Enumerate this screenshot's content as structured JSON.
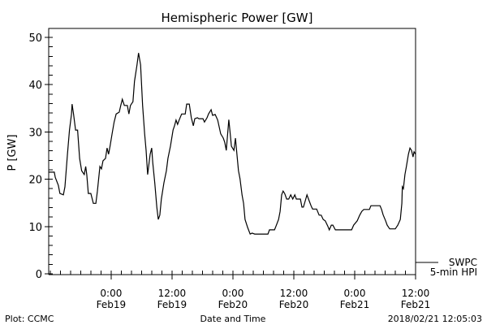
{
  "chart_data": {
    "type": "line",
    "title": "Hemispheric Power [GW]",
    "xlabel": "Date and Time",
    "ylabel": "P [GW]",
    "x_units": "hours relative to 2018-02-19 00:00",
    "xlim": [
      -12.3,
      60
    ],
    "ylim": [
      0,
      50
    ],
    "y_ticks": [
      0,
      10,
      20,
      30,
      40,
      50
    ],
    "y_minor_step": 2,
    "x_minor_step": 2,
    "x_ticks": [
      {
        "value": 0,
        "time": "0:00",
        "date": "Feb19"
      },
      {
        "value": 12,
        "time": "12:00",
        "date": "Feb19"
      },
      {
        "value": 24,
        "time": "0:00",
        "date": "Feb20"
      },
      {
        "value": 36,
        "time": "12:00",
        "date": "Feb20"
      },
      {
        "value": 48,
        "time": "0:00",
        "date": "Feb21"
      },
      {
        "value": 60,
        "time": "12:00",
        "date": "Feb21"
      }
    ],
    "grid": false,
    "legend": {
      "placement": "bottom-right",
      "entries": [
        {
          "line1": "SWPC",
          "line2": "5-min HPI"
        }
      ]
    },
    "series": [
      {
        "name": "SWPC 5-min HPI",
        "color": "#000000",
        "x": [
          -12.3,
          -11.2,
          -11.0,
          -10.4,
          -10.1,
          -9.4,
          -9.1,
          -8.6,
          -8.2,
          -7.8,
          -7.7,
          -7.4,
          -7.0,
          -6.6,
          -6.2,
          -5.8,
          -5.3,
          -5.0,
          -4.8,
          -4.5,
          -4.0,
          -3.5,
          -3.0,
          -2.7,
          -2.2,
          -1.9,
          -1.6,
          -1.1,
          -0.8,
          -0.5,
          -0.2,
          0.2,
          0.6,
          1.0,
          1.6,
          1.9,
          2.2,
          2.6,
          3.2,
          3.5,
          3.8,
          4.3,
          4.6,
          5.1,
          5.4,
          5.8,
          6.2,
          6.6,
          6.9,
          7.2,
          7.7,
          8.0,
          8.2,
          8.6,
          9.0,
          9.3,
          9.6,
          9.9,
          10.4,
          10.9,
          11.2,
          11.7,
          12.2,
          12.5,
          12.8,
          13.1,
          13.4,
          13.9,
          14.6,
          14.9,
          15.4,
          15.8,
          16.2,
          16.5,
          17.0,
          17.3,
          18.1,
          18.4,
          18.9,
          19.2,
          19.7,
          20.0,
          20.5,
          21.0,
          21.6,
          22.1,
          22.4,
          22.7,
          23.2,
          23.4,
          23.7,
          24.2,
          24.5,
          24.8,
          25.1,
          25.4,
          25.8,
          26.1,
          26.4,
          26.9,
          27.4,
          27.8,
          28.3,
          30.9,
          31.2,
          32.2,
          32.5,
          33.0,
          33.3,
          33.6,
          33.9,
          34.2,
          34.6,
          35.0,
          35.4,
          35.8,
          36.2,
          36.5,
          37.3,
          37.6,
          37.9,
          38.2,
          38.6,
          38.9,
          39.4,
          39.7,
          40.5,
          41.0,
          41.4,
          41.8,
          42.2,
          42.7,
          43.0,
          43.4,
          43.7,
          44.2,
          47.4,
          47.8,
          48.5,
          49.0,
          49.4,
          49.8,
          50.9,
          51.2,
          53.0,
          53.3,
          53.6,
          54.1,
          54.4,
          54.9,
          56.0,
          56.5,
          57.0,
          57.3,
          57.4,
          57.6,
          57.9,
          58.2,
          58.6,
          58.9,
          59.2,
          59.5,
          59.7,
          60.0
        ],
        "y": [
          21.5,
          21.5,
          20.4,
          18.7,
          17.0,
          16.7,
          18.4,
          25.3,
          30.4,
          33.8,
          35.9,
          33.8,
          30.4,
          30.4,
          24.4,
          21.8,
          21.0,
          22.7,
          21.0,
          17.0,
          17.0,
          14.9,
          14.9,
          17.5,
          22.7,
          22.2,
          23.9,
          24.4,
          26.6,
          25.3,
          27.0,
          29.6,
          32.1,
          33.8,
          34.2,
          35.6,
          36.9,
          35.6,
          35.6,
          33.8,
          35.6,
          36.4,
          40.7,
          44.2,
          46.7,
          44.2,
          35.6,
          29.6,
          26.1,
          21.0,
          25.3,
          26.6,
          23.5,
          19.2,
          14.1,
          11.5,
          12.4,
          15.8,
          19.2,
          21.8,
          24.4,
          27.0,
          30.4,
          31.3,
          32.5,
          31.6,
          32.5,
          33.8,
          33.8,
          35.9,
          35.9,
          33.0,
          31.3,
          32.8,
          33.0,
          32.8,
          32.8,
          32.1,
          33.0,
          33.8,
          34.7,
          33.5,
          33.7,
          32.5,
          29.6,
          28.7,
          27.8,
          26.1,
          32.6,
          30.4,
          27.0,
          26.1,
          28.7,
          25.3,
          21.8,
          20.1,
          16.7,
          14.9,
          11.5,
          9.8,
          8.4,
          8.6,
          8.4,
          8.4,
          9.3,
          9.3,
          10.1,
          11.5,
          13.2,
          16.7,
          17.5,
          17.0,
          15.8,
          15.8,
          16.7,
          15.8,
          16.7,
          15.8,
          15.8,
          14.1,
          14.1,
          15.2,
          16.7,
          15.8,
          14.4,
          13.7,
          13.7,
          12.4,
          12.4,
          11.5,
          11.2,
          10.1,
          9.3,
          10.3,
          10.3,
          9.3,
          9.3,
          10.3,
          11.2,
          12.4,
          13.2,
          13.6,
          13.6,
          14.4,
          14.4,
          13.6,
          12.5,
          11.2,
          10.3,
          9.5,
          9.5,
          10.3,
          11.5,
          14.9,
          18.4,
          18.0,
          21.0,
          22.7,
          25.3,
          26.6,
          26.1,
          24.7,
          25.8,
          25.3
        ]
      }
    ]
  },
  "footer": {
    "left": "Plot: CCMC",
    "center": "Date and Time",
    "right": "2018/02/21 12:05:03"
  }
}
